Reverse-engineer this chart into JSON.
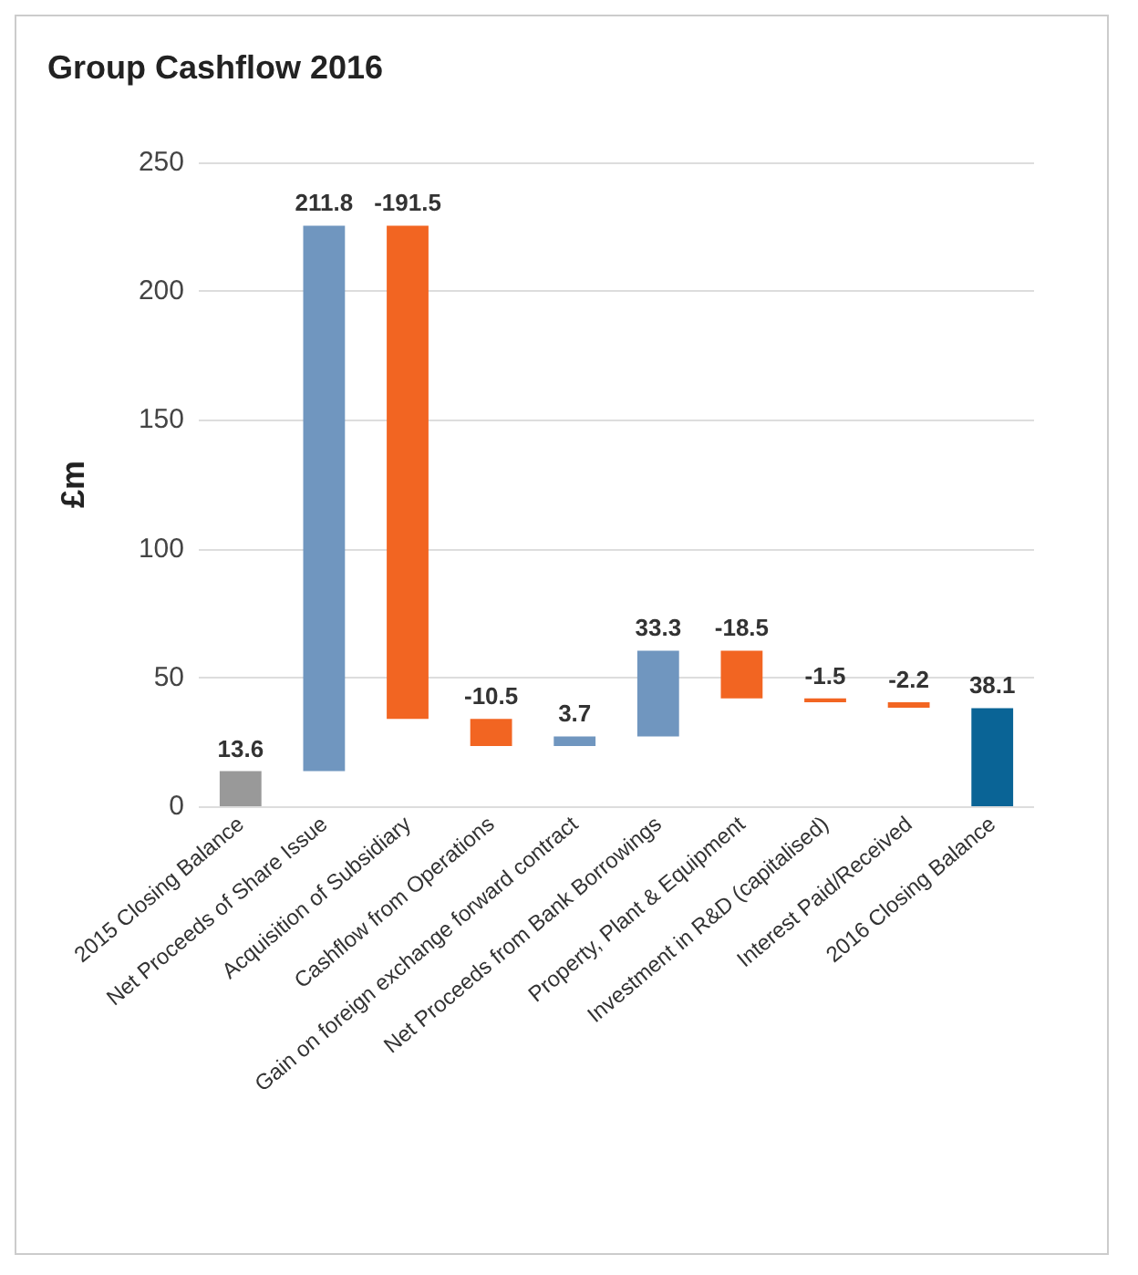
{
  "chart_data": {
    "type": "bar",
    "title": "Group Cashflow 2016",
    "ylabel": "£m",
    "categories": [
      "2015 Closing Balance",
      "Net Proceeds of Share Issue",
      "Acquisition of Subsidiary",
      "Cashflow from Operations",
      "Gain on foreign exchange forward contract",
      "Net Proceeds from Bank Borrowings",
      "Property, Plant & Equipment",
      "Investment in R&D (capitalised)",
      "Interest Paid/Received",
      "2016 Closing Balance"
    ],
    "values": [
      13.6,
      211.8,
      -191.5,
      -10.5,
      3.7,
      33.3,
      -18.5,
      -1.5,
      -2.2,
      38.1
    ],
    "base": [
      0,
      13.6,
      225.4,
      33.9,
      23.4,
      27.1,
      60.4,
      41.9,
      40.4,
      0
    ],
    "colors": [
      "#999999",
      "#7096bf",
      "#f26522",
      "#f26522",
      "#7096bf",
      "#7096bf",
      "#f26522",
      "#f26522",
      "#f26522",
      "#0a6496"
    ],
    "ylim": [
      0,
      250
    ],
    "yticks": [
      0,
      50,
      100,
      150,
      200,
      250
    ],
    "grid": "y",
    "data_labels": true
  }
}
